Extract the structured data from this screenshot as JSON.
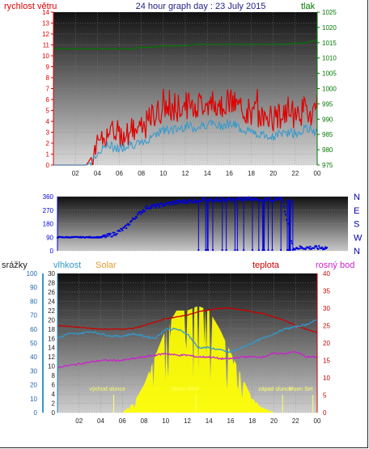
{
  "title": "24 hour graph day : 23 July 2015",
  "colors": {
    "red": "#e00000",
    "green": "#007700",
    "blue": "#0000dd",
    "cyan": "#3399cc",
    "orange": "#e89a30",
    "magenta": "#cc22cc",
    "yellow": "#ffff00"
  },
  "chart_data": [
    {
      "type": "line",
      "name": "wind-pressure",
      "left_label": "rychlost větru",
      "right_label": "tlak",
      "x_ticks": [
        "02",
        "04",
        "06",
        "08",
        "10",
        "12",
        "14",
        "16",
        "18",
        "20",
        "22",
        "00"
      ],
      "left_ticks": [
        "0",
        "1",
        "2",
        "3",
        "4",
        "5",
        "6",
        "7",
        "8",
        "9",
        "10",
        "11",
        "12",
        "13",
        "14"
      ],
      "right_ticks": [
        "975",
        "980",
        "985",
        "990",
        "995",
        "1000",
        "1005",
        "1010",
        "1015",
        "1020",
        "1025"
      ],
      "ylim_left": [
        0,
        14
      ],
      "ylim_right": [
        975,
        1025
      ],
      "x_hours": [
        0,
        2,
        3,
        3.5,
        4,
        5,
        6,
        7,
        8,
        9,
        10,
        11,
        12,
        13,
        14,
        15,
        16,
        17,
        18,
        19,
        20,
        21,
        22,
        23,
        24
      ],
      "gust": [
        0,
        0,
        0,
        0.8,
        2.0,
        3.0,
        2.8,
        3.2,
        3.0,
        4.5,
        5.2,
        5.0,
        5.5,
        5.4,
        5.8,
        5.6,
        5.8,
        5.2,
        4.8,
        4.5,
        4.2,
        4.8,
        4.6,
        5.0,
        4.8
      ],
      "wind": [
        0,
        0,
        0,
        0.3,
        1.2,
        1.8,
        1.5,
        2.0,
        1.8,
        2.8,
        3.2,
        3.2,
        3.6,
        3.4,
        3.8,
        3.6,
        3.8,
        3.4,
        3.0,
        2.8,
        2.6,
        3.0,
        2.9,
        3.3,
        3.1
      ],
      "pressure": [
        1013,
        1013,
        1013,
        1013,
        1013,
        1013,
        1013,
        1013,
        1013.5,
        1013.5,
        1014,
        1014,
        1014,
        1014.5,
        1014.5,
        1014.5,
        1014.5,
        1014.5,
        1014.5,
        1014.5,
        1014.5,
        1014.5,
        1014.8,
        1015,
        1016
      ]
    },
    {
      "type": "scatter",
      "name": "wind-direction",
      "left_ticks": [
        "0",
        "90",
        "180",
        "270",
        "360"
      ],
      "compass": [
        "N",
        "W",
        "S",
        "E",
        "N"
      ],
      "ylim": [
        0,
        360
      ],
      "x_hours": [
        0,
        2,
        3,
        4,
        5,
        6,
        7,
        8,
        9,
        10,
        11,
        12,
        12.5,
        13,
        14,
        15,
        16,
        17,
        18,
        19,
        20,
        21,
        22,
        23,
        24
      ],
      "direction": [
        90,
        90,
        90,
        90,
        110,
        150,
        230,
        290,
        300,
        315,
        325,
        330,
        335,
        340,
        340,
        340,
        340,
        345,
        345,
        340,
        350,
        20,
        20,
        20,
        20
      ]
    },
    {
      "type": "line",
      "name": "rain-humidity-solar-temp",
      "labels": {
        "rain": "srážky",
        "humidity": "vlhkost",
        "solar": "Solar",
        "temp": "teplota",
        "dew": "rosný bod"
      },
      "rain_ticks": [
        "0",
        "10",
        "20",
        "30",
        "40",
        "50",
        "60",
        "70",
        "80",
        "90",
        "100"
      ],
      "hum_ticks": [
        "0",
        "2",
        "4",
        "6",
        "8",
        "10",
        "12",
        "14",
        "16",
        "18",
        "20",
        "22",
        "24",
        "26",
        "28",
        "30"
      ],
      "temp_ticks": [
        "0",
        "5",
        "10",
        "15",
        "20",
        "25",
        "30",
        "35",
        "40"
      ],
      "ylim_temp": [
        0,
        40
      ],
      "ylim_humidity": [
        0,
        30
      ],
      "x_hours": [
        0,
        1,
        2,
        3,
        4,
        5,
        6,
        7,
        8,
        9,
        10,
        11,
        12,
        13,
        14,
        15,
        16,
        17,
        18,
        19,
        20,
        21,
        22,
        23,
        24
      ],
      "temperature": [
        25,
        24.8,
        24.5,
        24.2,
        24,
        24,
        24,
        24.2,
        25,
        26,
        27,
        27.5,
        28,
        29,
        29.5,
        30,
        30,
        29.5,
        29,
        28.5,
        27.5,
        26.5,
        25,
        24,
        23
      ],
      "humidity": [
        16,
        17,
        17,
        17.5,
        17,
        16.5,
        16.5,
        17,
        16.5,
        16,
        18,
        18,
        17,
        14,
        14,
        13.5,
        13,
        14,
        15,
        16,
        17,
        18,
        18.5,
        19,
        20
      ],
      "dew": [
        13,
        13.5,
        14,
        14.5,
        15,
        15,
        15,
        15.5,
        16,
        16.5,
        17,
        16.5,
        16.5,
        16,
        16,
        15.5,
        15.5,
        16,
        16,
        16,
        17,
        17,
        17.5,
        16,
        16
      ],
      "solar": [
        0,
        0,
        0,
        0,
        0,
        0,
        0,
        2,
        6,
        12,
        18,
        22,
        22,
        23,
        22,
        18,
        13,
        8,
        3,
        1,
        0,
        0,
        0,
        0,
        0
      ],
      "annotations": [
        {
          "text": "východ slunce",
          "hour": 5.2
        },
        {
          "text": "Moon Rise",
          "hour": 12.8
        },
        {
          "text": "západ slunce",
          "hour": 20.8
        },
        {
          "text": "Moon Set",
          "hour": 23.6
        }
      ],
      "x_ticks": [
        "02",
        "04",
        "06",
        "08",
        "10",
        "12",
        "14",
        "16",
        "18",
        "20",
        "22",
        "00"
      ]
    }
  ]
}
